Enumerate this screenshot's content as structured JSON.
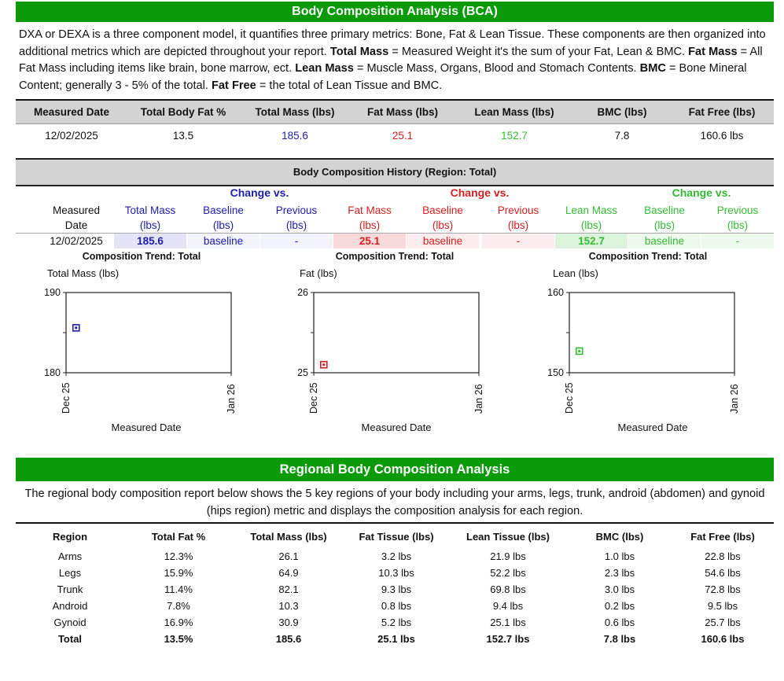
{
  "header": {
    "title": "Body Composition Analysis (BCA)"
  },
  "intro": {
    "p1": "DXA or DEXA is a three component model, it quantifies three primary metrics: Bone, Fat & Lean Tissue. These components are then organized into additional metrics which are depicted throughout your report. ",
    "t1": "Total Mass",
    "p2": " = Measured Weight it's the sum of your Fat, Lean & BMC. ",
    "t2": "Fat Mass",
    "p3": " = All Fat Mass including items like brain, bone marrow, ect. ",
    "t3": "Lean Mass",
    "p4": " = Muscle Mass, Organs, Blood and Stomach Contents. ",
    "t4": "BMC",
    "p5": " = Bone Mineral Content; generally 3 - 5% of the total. ",
    "t5": "Fat Free",
    "p6": " = the total of Lean Tissue and BMC."
  },
  "summary": {
    "headers": [
      "Measured Date",
      "Total Body Fat %",
      "Total Mass (lbs)",
      "Fat Mass (lbs)",
      "Lean Mass (lbs)",
      "BMC (lbs)",
      "Fat Free (lbs)"
    ],
    "row": [
      "12/02/2025",
      "13.5",
      "185.6",
      "25.1",
      "152.7",
      "7.8",
      "160.6 lbs"
    ]
  },
  "history": {
    "title": "Body Composition History (Region: Total)",
    "group_label": "Change vs.",
    "measured_l1": "Measured",
    "measured_l2": "Date",
    "total_l1": "Total Mass",
    "fat_l1": "Fat Mass",
    "lean_l1": "Lean Mass",
    "baseline_l1": "Baseline",
    "previous_l1": "Previous",
    "unit": "(lbs)",
    "row": {
      "date": "12/02/2025",
      "total": "185.6",
      "total_baseline": "baseline",
      "total_previous": "-",
      "fat": "25.1",
      "fat_baseline": "baseline",
      "fat_previous": "-",
      "lean": "152.7",
      "lean_baseline": "baseline",
      "lean_previous": "-"
    }
  },
  "colors": {
    "green": "#0a9a0a",
    "blue": "#2020a8",
    "red": "#d42020",
    "lightgreen": "#33bb33"
  },
  "chart_data": [
    {
      "type": "scatter",
      "title": "Composition Trend: Total",
      "ylabel": "Total Mass (lbs)",
      "xlabel": "Measured Date",
      "x": [
        "2025-12-02"
      ],
      "y": [
        185.6
      ],
      "ylim": [
        180,
        190
      ],
      "yticks": [
        "190",
        "180"
      ],
      "xticks": [
        "Dec 25",
        "Jan 26"
      ],
      "color": "#2020a8"
    },
    {
      "type": "scatter",
      "title": "Composition Trend: Total",
      "ylabel": "Fat (lbs)",
      "xlabel": "Measured Date",
      "x": [
        "2025-12-02"
      ],
      "y": [
        25.1
      ],
      "ylim": [
        25,
        26
      ],
      "yticks": [
        "26",
        "25"
      ],
      "xticks": [
        "Dec 25",
        "Jan 26"
      ],
      "color": "#d42020"
    },
    {
      "type": "scatter",
      "title": "Composition Trend: Total",
      "ylabel": "Lean (lbs)",
      "xlabel": "Measured Date",
      "x": [
        "2025-12-02"
      ],
      "y": [
        152.7
      ],
      "ylim": [
        150,
        160
      ],
      "yticks": [
        "160",
        "150"
      ],
      "xticks": [
        "Dec 25",
        "Jan 26"
      ],
      "color": "#33bb33"
    }
  ],
  "regional": {
    "title": "Regional  Body Composition Analysis",
    "description": "The regional body composition report below shows the 5 key regions of your body including your arms, legs, trunk, android (abdomen) and gynoid (hips region) metric and displays the composition analysis for each region.",
    "headers": [
      "Region",
      "Total Fat %",
      "Total Mass (lbs)",
      "Fat Tissue (lbs)",
      "Lean Tissue (lbs)",
      "BMC (lbs)",
      "Fat Free (lbs)"
    ],
    "rows": [
      [
        "Arms",
        "12.3%",
        "26.1",
        "3.2 lbs",
        "21.9 lbs",
        "1.0 lbs",
        "22.8 lbs"
      ],
      [
        "Legs",
        "15.9%",
        "64.9",
        "10.3 lbs",
        "52.2 lbs",
        "2.3 lbs",
        "54.6 lbs"
      ],
      [
        "Trunk",
        "11.4%",
        "82.1",
        "9.3 lbs",
        "69.8 lbs",
        "3.0 lbs",
        "72.8 lbs"
      ],
      [
        "Android",
        "7.8%",
        "10.3",
        "0.8 lbs",
        "9.4 lbs",
        "0.2 lbs",
        "9.5 lbs"
      ],
      [
        "Gynoid",
        "16.9%",
        "30.9",
        "5.2 lbs",
        "25.1 lbs",
        "0.6 lbs",
        "25.7 lbs"
      ],
      [
        "Total",
        "13.5%",
        "185.6",
        "25.1 lbs",
        "152.7 lbs",
        "7.8 lbs",
        "160.6 lbs"
      ]
    ]
  }
}
